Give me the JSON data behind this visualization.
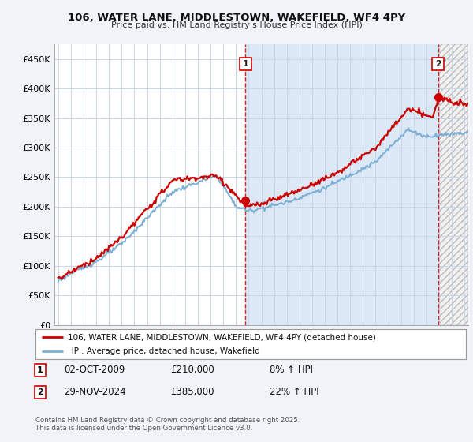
{
  "title": "106, WATER LANE, MIDDLESTOWN, WAKEFIELD, WF4 4PY",
  "subtitle": "Price paid vs. HM Land Registry's House Price Index (HPI)",
  "ylim": [
    0,
    475000
  ],
  "yticks": [
    0,
    50000,
    100000,
    150000,
    200000,
    250000,
    300000,
    350000,
    400000,
    450000
  ],
  "ytick_labels": [
    "£0",
    "£50K",
    "£100K",
    "£150K",
    "£200K",
    "£250K",
    "£300K",
    "£350K",
    "£400K",
    "£450K"
  ],
  "xlim_start": 1994.7,
  "xlim_end": 2027.3,
  "ann1_x": 2009.75,
  "ann1_y": 210000,
  "ann2_x": 2024.92,
  "ann2_y": 385000,
  "annotation1": {
    "label": "1",
    "date": "02-OCT-2009",
    "price": "£210,000",
    "hpi": "8% ↑ HPI"
  },
  "annotation2": {
    "label": "2",
    "date": "29-NOV-2024",
    "price": "£385,000",
    "hpi": "22% ↑ HPI"
  },
  "line_color_property": "#cc0000",
  "line_color_hpi": "#7bafd4",
  "legend_label_property": "106, WATER LANE, MIDDLESTOWN, WAKEFIELD, WF4 4PY (detached house)",
  "legend_label_hpi": "HPI: Average price, detached house, Wakefield",
  "footer": "Contains HM Land Registry data © Crown copyright and database right 2025.\nThis data is licensed under the Open Government Licence v3.0.",
  "background_color": "#f0f4f8",
  "plot_bg_color": "#ffffff",
  "shaded_bg_color": "#dce8f5",
  "grid_color": "#c8d8e8"
}
